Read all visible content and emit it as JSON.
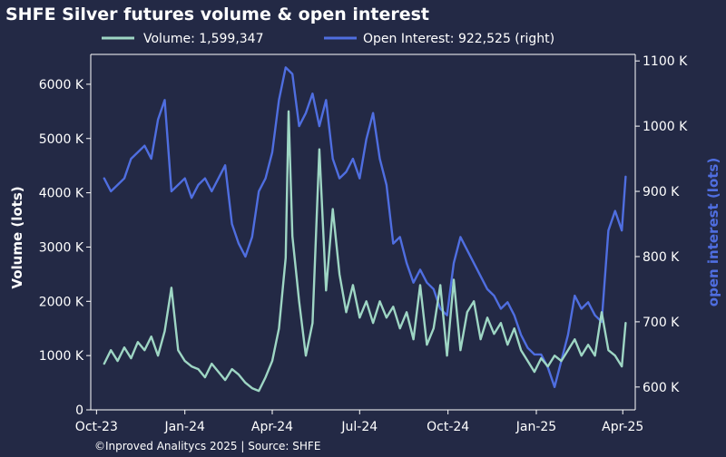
{
  "chart_data": {
    "type": "line",
    "title": "SHFE Silver futures volume & open interest",
    "footer": "©Inproved Analitycs 2025 | Source: SHFE",
    "ylabel_left": "Volume (lots)",
    "ylabel_right": "open interest (lots)",
    "xlim": [
      "2023-09-25",
      "2025-04-14"
    ],
    "ylim_left": [
      0,
      6550000
    ],
    "ylim_right": [
      565000,
      1110000
    ],
    "x_ticks": [
      {
        "date": "2023-10-01",
        "label": "Oct-23"
      },
      {
        "date": "2024-01-01",
        "label": "Jan-24"
      },
      {
        "date": "2024-04-01",
        "label": "Apr-24"
      },
      {
        "date": "2024-07-01",
        "label": "Jul-24"
      },
      {
        "date": "2024-10-01",
        "label": "Oct-24"
      },
      {
        "date": "2025-01-01",
        "label": "Jan-25"
      },
      {
        "date": "2025-04-01",
        "label": "Apr-25"
      }
    ],
    "y_ticks_left": [
      {
        "value": 0,
        "label": "0"
      },
      {
        "value": 1000000,
        "label": "1000 K"
      },
      {
        "value": 2000000,
        "label": "2000 K"
      },
      {
        "value": 3000000,
        "label": "3000 K"
      },
      {
        "value": 4000000,
        "label": "4000 K"
      },
      {
        "value": 5000000,
        "label": "5000 K"
      },
      {
        "value": 6000000,
        "label": "6000 K"
      }
    ],
    "y_ticks_right": [
      {
        "value": 600000,
        "label": "600 K"
      },
      {
        "value": 700000,
        "label": "700 K"
      },
      {
        "value": 800000,
        "label": "800 K"
      },
      {
        "value": 900000,
        "label": "900 K"
      },
      {
        "value": 1000000,
        "label": "1000 K"
      },
      {
        "value": 1100000,
        "label": "1100 K"
      }
    ],
    "legend_position": "top",
    "series": [
      {
        "name": "Volume: 1,599,347",
        "axis": "left",
        "color": "#9ed6c4",
        "points": [
          [
            "2023-10-09",
            850000
          ],
          [
            "2023-10-16",
            1100000
          ],
          [
            "2023-10-23",
            900000
          ],
          [
            "2023-10-30",
            1150000
          ],
          [
            "2023-11-06",
            950000
          ],
          [
            "2023-11-13",
            1250000
          ],
          [
            "2023-11-20",
            1100000
          ],
          [
            "2023-11-27",
            1350000
          ],
          [
            "2023-12-04",
            1000000
          ],
          [
            "2023-12-11",
            1450000
          ],
          [
            "2023-12-18",
            2250000
          ],
          [
            "2023-12-25",
            1100000
          ],
          [
            "2024-01-01",
            900000
          ],
          [
            "2024-01-08",
            800000
          ],
          [
            "2024-01-15",
            750000
          ],
          [
            "2024-01-22",
            600000
          ],
          [
            "2024-01-29",
            850000
          ],
          [
            "2024-02-05",
            700000
          ],
          [
            "2024-02-12",
            550000
          ],
          [
            "2024-02-19",
            750000
          ],
          [
            "2024-02-26",
            650000
          ],
          [
            "2024-03-04",
            500000
          ],
          [
            "2024-03-11",
            400000
          ],
          [
            "2024-03-18",
            350000
          ],
          [
            "2024-03-25",
            600000
          ],
          [
            "2024-04-01",
            900000
          ],
          [
            "2024-04-08",
            1500000
          ],
          [
            "2024-04-15",
            2800000
          ],
          [
            "2024-04-18",
            5500000
          ],
          [
            "2024-04-22",
            3200000
          ],
          [
            "2024-04-29",
            2000000
          ],
          [
            "2024-05-06",
            1000000
          ],
          [
            "2024-05-13",
            1600000
          ],
          [
            "2024-05-20",
            4800000
          ],
          [
            "2024-05-27",
            2200000
          ],
          [
            "2024-06-03",
            3700000
          ],
          [
            "2024-06-10",
            2500000
          ],
          [
            "2024-06-17",
            1800000
          ],
          [
            "2024-06-24",
            2300000
          ],
          [
            "2024-07-01",
            1700000
          ],
          [
            "2024-07-08",
            2000000
          ],
          [
            "2024-07-15",
            1600000
          ],
          [
            "2024-07-22",
            2000000
          ],
          [
            "2024-07-29",
            1700000
          ],
          [
            "2024-08-05",
            1900000
          ],
          [
            "2024-08-12",
            1500000
          ],
          [
            "2024-08-19",
            1800000
          ],
          [
            "2024-08-26",
            1300000
          ],
          [
            "2024-09-02",
            2300000
          ],
          [
            "2024-09-09",
            1200000
          ],
          [
            "2024-09-16",
            1500000
          ],
          [
            "2024-09-23",
            2300000
          ],
          [
            "2024-09-30",
            1000000
          ],
          [
            "2024-10-07",
            2400000
          ],
          [
            "2024-10-14",
            1100000
          ],
          [
            "2024-10-21",
            1800000
          ],
          [
            "2024-10-28",
            2000000
          ],
          [
            "2024-11-04",
            1300000
          ],
          [
            "2024-11-11",
            1700000
          ],
          [
            "2024-11-18",
            1400000
          ],
          [
            "2024-11-25",
            1600000
          ],
          [
            "2024-12-02",
            1200000
          ],
          [
            "2024-12-09",
            1500000
          ],
          [
            "2024-12-16",
            1100000
          ],
          [
            "2024-12-23",
            900000
          ],
          [
            "2024-12-30",
            700000
          ],
          [
            "2025-01-06",
            950000
          ],
          [
            "2025-01-13",
            800000
          ],
          [
            "2025-01-20",
            1000000
          ],
          [
            "2025-01-27",
            900000
          ],
          [
            "2025-02-03",
            1100000
          ],
          [
            "2025-02-10",
            1300000
          ],
          [
            "2025-02-17",
            1000000
          ],
          [
            "2025-02-24",
            1200000
          ],
          [
            "2025-03-03",
            1000000
          ],
          [
            "2025-03-10",
            1800000
          ],
          [
            "2025-03-17",
            1100000
          ],
          [
            "2025-03-24",
            1000000
          ],
          [
            "2025-03-31",
            800000
          ],
          [
            "2025-04-04",
            1600000
          ]
        ]
      },
      {
        "name": "Open Interest: 922,525 (right)",
        "axis": "right",
        "color": "#4f6ee0",
        "points": [
          [
            "2023-10-09",
            920000
          ],
          [
            "2023-10-16",
            900000
          ],
          [
            "2023-10-23",
            910000
          ],
          [
            "2023-10-30",
            920000
          ],
          [
            "2023-11-06",
            950000
          ],
          [
            "2023-11-13",
            960000
          ],
          [
            "2023-11-20",
            970000
          ],
          [
            "2023-11-27",
            950000
          ],
          [
            "2023-12-04",
            1010000
          ],
          [
            "2023-12-11",
            1040000
          ],
          [
            "2023-12-18",
            900000
          ],
          [
            "2023-12-25",
            910000
          ],
          [
            "2024-01-01",
            920000
          ],
          [
            "2024-01-08",
            890000
          ],
          [
            "2024-01-15",
            910000
          ],
          [
            "2024-01-22",
            920000
          ],
          [
            "2024-01-29",
            900000
          ],
          [
            "2024-02-05",
            920000
          ],
          [
            "2024-02-12",
            940000
          ],
          [
            "2024-02-19",
            850000
          ],
          [
            "2024-02-26",
            820000
          ],
          [
            "2024-03-04",
            800000
          ],
          [
            "2024-03-11",
            830000
          ],
          [
            "2024-03-18",
            900000
          ],
          [
            "2024-03-25",
            920000
          ],
          [
            "2024-04-01",
            960000
          ],
          [
            "2024-04-08",
            1040000
          ],
          [
            "2024-04-15",
            1090000
          ],
          [
            "2024-04-22",
            1080000
          ],
          [
            "2024-04-29",
            1000000
          ],
          [
            "2024-05-06",
            1020000
          ],
          [
            "2024-05-13",
            1050000
          ],
          [
            "2024-05-20",
            1000000
          ],
          [
            "2024-05-27",
            1040000
          ],
          [
            "2024-06-03",
            950000
          ],
          [
            "2024-06-10",
            920000
          ],
          [
            "2024-06-17",
            930000
          ],
          [
            "2024-06-24",
            950000
          ],
          [
            "2024-07-01",
            920000
          ],
          [
            "2024-07-08",
            980000
          ],
          [
            "2024-07-15",
            1020000
          ],
          [
            "2024-07-22",
            950000
          ],
          [
            "2024-07-29",
            910000
          ],
          [
            "2024-08-05",
            820000
          ],
          [
            "2024-08-12",
            830000
          ],
          [
            "2024-08-19",
            790000
          ],
          [
            "2024-08-26",
            760000
          ],
          [
            "2024-09-02",
            780000
          ],
          [
            "2024-09-09",
            760000
          ],
          [
            "2024-09-16",
            750000
          ],
          [
            "2024-09-23",
            720000
          ],
          [
            "2024-09-30",
            710000
          ],
          [
            "2024-10-07",
            790000
          ],
          [
            "2024-10-14",
            830000
          ],
          [
            "2024-10-21",
            810000
          ],
          [
            "2024-10-28",
            790000
          ],
          [
            "2024-11-04",
            770000
          ],
          [
            "2024-11-11",
            750000
          ],
          [
            "2024-11-18",
            740000
          ],
          [
            "2024-11-25",
            720000
          ],
          [
            "2024-12-02",
            730000
          ],
          [
            "2024-12-09",
            710000
          ],
          [
            "2024-12-16",
            680000
          ],
          [
            "2024-12-23",
            660000
          ],
          [
            "2024-12-30",
            650000
          ],
          [
            "2025-01-06",
            650000
          ],
          [
            "2025-01-13",
            630000
          ],
          [
            "2025-01-20",
            600000
          ],
          [
            "2025-01-27",
            640000
          ],
          [
            "2025-02-03",
            680000
          ],
          [
            "2025-02-10",
            740000
          ],
          [
            "2025-02-17",
            720000
          ],
          [
            "2025-02-24",
            730000
          ],
          [
            "2025-03-03",
            710000
          ],
          [
            "2025-03-10",
            700000
          ],
          [
            "2025-03-17",
            840000
          ],
          [
            "2025-03-24",
            870000
          ],
          [
            "2025-03-31",
            840000
          ],
          [
            "2025-04-04",
            922525
          ]
        ]
      }
    ]
  }
}
